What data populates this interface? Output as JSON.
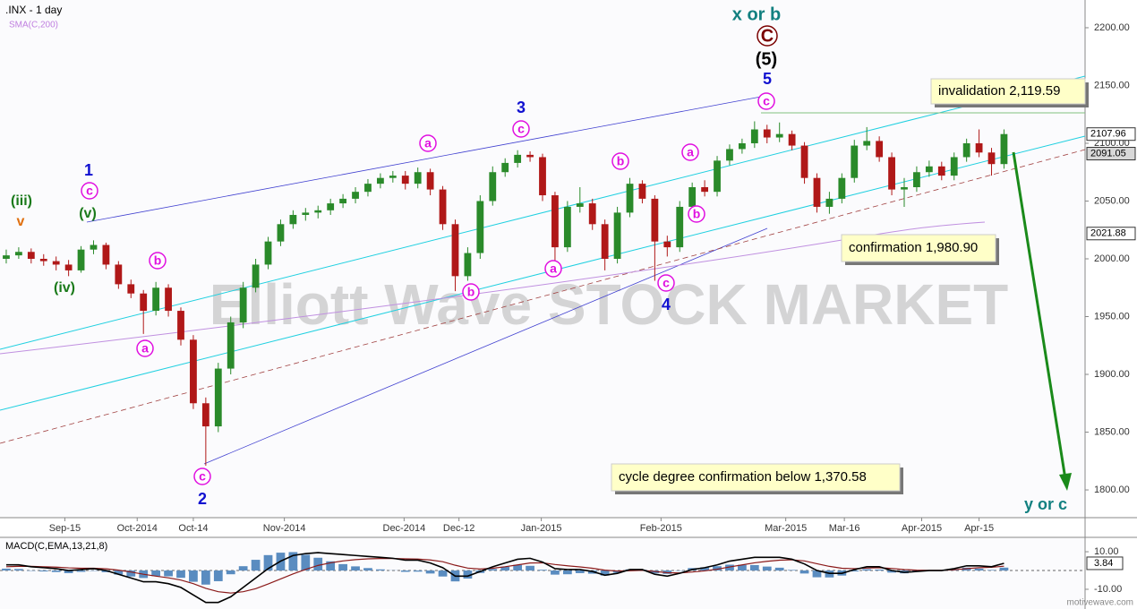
{
  "chart_data": [
    {
      "type": "candlestick",
      "title": ".INX - 1 day",
      "sma_label": "SMA(C,200)",
      "up_color": "#2a8a2a",
      "down_color": "#b01818",
      "xlim": [
        -0.5,
        86.5
      ],
      "ylim": [
        1776,
        2224
      ],
      "xticks": [
        {
          "value": 4.7,
          "label": "Sep-15"
        },
        {
          "value": 10.5,
          "label": "Oct-2014"
        },
        {
          "value": 15.0,
          "label": "Oct-14"
        },
        {
          "value": 22.3,
          "label": "Nov-2014"
        },
        {
          "value": 31.9,
          "label": "Dec-2014"
        },
        {
          "value": 36.3,
          "label": "Dec-12"
        },
        {
          "value": 42.9,
          "label": "Jan-2015"
        },
        {
          "value": 52.5,
          "label": "Feb-2015"
        },
        {
          "value": 62.5,
          "label": "Mar-2015"
        },
        {
          "value": 67.2,
          "label": "Mar-16"
        },
        {
          "value": 73.4,
          "label": "Apr-2015"
        },
        {
          "value": 78.0,
          "label": "Apr-15"
        }
      ],
      "yticks": [
        {
          "value": 1800,
          "label": "1800.00"
        },
        {
          "value": 1850,
          "label": "1850.00"
        },
        {
          "value": 1900,
          "label": "1900.00"
        },
        {
          "value": 1950,
          "label": "1950.00"
        },
        {
          "value": 2000,
          "label": "2000.00"
        },
        {
          "value": 2050,
          "label": "2050.00"
        },
        {
          "value": 2100,
          "label": "2100.00"
        },
        {
          "value": 2150,
          "label": "2150.00"
        },
        {
          "value": 2200,
          "label": "2200.00"
        }
      ],
      "axis_marks": [
        2091.05,
        2021.88
      ],
      "candles": [
        [
          2000,
          2008,
          1996,
          2003
        ],
        [
          2003,
          2010,
          2000,
          2006
        ],
        [
          2006,
          2009,
          1996,
          2000
        ],
        [
          2000,
          2004,
          1994,
          1998
        ],
        [
          1998,
          2002,
          1990,
          1995
        ],
        [
          1995,
          1999,
          1985,
          1990
        ],
        [
          1990,
          2011,
          1988,
          2008
        ],
        [
          2008,
          2016,
          2004,
          2012
        ],
        [
          2012,
          2014,
          1991,
          1995
        ],
        [
          1995,
          1998,
          1974,
          1978
        ],
        [
          1978,
          1982,
          1966,
          1970
        ],
        [
          1970,
          1973,
          1935,
          1955
        ],
        [
          1955,
          1980,
          1951,
          1975
        ],
        [
          1975,
          1978,
          1950,
          1955
        ],
        [
          1955,
          1958,
          1925,
          1930
        ],
        [
          1930,
          1934,
          1870,
          1875
        ],
        [
          1875,
          1880,
          1821,
          1855
        ],
        [
          1855,
          1910,
          1850,
          1905
        ],
        [
          1905,
          1950,
          1900,
          1945
        ],
        [
          1945,
          1980,
          1940,
          1975
        ],
        [
          1975,
          2000,
          1971,
          1995
        ],
        [
          1995,
          2019,
          1991,
          2015
        ],
        [
          2015,
          2034,
          2011,
          2030
        ],
        [
          2030,
          2042,
          2026,
          2038
        ],
        [
          2038,
          2044,
          2033,
          2040
        ],
        [
          2040,
          2046,
          2035,
          2042
        ],
        [
          2042,
          2052,
          2038,
          2048
        ],
        [
          2048,
          2056,
          2044,
          2052
        ],
        [
          2052,
          2062,
          2048,
          2058
        ],
        [
          2058,
          2069,
          2054,
          2065
        ],
        [
          2065,
          2074,
          2061,
          2070
        ],
        [
          2070,
          2076,
          2066,
          2072
        ],
        [
          2072,
          2076,
          2060,
          2065
        ],
        [
          2065,
          2079,
          2061,
          2075
        ],
        [
          2075,
          2078,
          2055,
          2060
        ],
        [
          2060,
          2063,
          2025,
          2030
        ],
        [
          2030,
          2034,
          1972,
          1985
        ],
        [
          1985,
          2010,
          1981,
          2005
        ],
        [
          2005,
          2055,
          2000,
          2050
        ],
        [
          2050,
          2080,
          2046,
          2075
        ],
        [
          2075,
          2087,
          2071,
          2083
        ],
        [
          2083,
          2094,
          2079,
          2090
        ],
        [
          2090,
          2093,
          2084,
          2088
        ],
        [
          2088,
          2091,
          2050,
          2055
        ],
        [
          2055,
          2058,
          1995,
          2010
        ],
        [
          2010,
          2050,
          2006,
          2045
        ],
        [
          2045,
          2062,
          2040,
          2048
        ],
        [
          2048,
          2052,
          2025,
          2030
        ],
        [
          2030,
          2034,
          1990,
          2000
        ],
        [
          2000,
          2045,
          1996,
          2040
        ],
        [
          2040,
          2070,
          2036,
          2065
        ],
        [
          2065,
          2068,
          2048,
          2052
        ],
        [
          2052,
          2055,
          1981,
          2015
        ],
        [
          2015,
          2020,
          2002,
          2010
        ],
        [
          2010,
          2050,
          2006,
          2045
        ],
        [
          2045,
          2066,
          2041,
          2062
        ],
        [
          2062,
          2068,
          2054,
          2058
        ],
        [
          2058,
          2089,
          2054,
          2085
        ],
        [
          2085,
          2099,
          2081,
          2095
        ],
        [
          2095,
          2104,
          2091,
          2100
        ],
        [
          2100,
          2119,
          2096,
          2112
        ],
        [
          2112,
          2116,
          2100,
          2105
        ],
        [
          2105,
          2118,
          2101,
          2108
        ],
        [
          2108,
          2111,
          2094,
          2098
        ],
        [
          2098,
          2101,
          2065,
          2070
        ],
        [
          2070,
          2074,
          2040,
          2045
        ],
        [
          2045,
          2058,
          2039,
          2052
        ],
        [
          2052,
          2074,
          2048,
          2070
        ],
        [
          2070,
          2103,
          2066,
          2098
        ],
        [
          2098,
          2114,
          2094,
          2102
        ],
        [
          2102,
          2106,
          2084,
          2088
        ],
        [
          2088,
          2092,
          2055,
          2060
        ],
        [
          2060,
          2070,
          2045,
          2062
        ],
        [
          2062,
          2080,
          2058,
          2075
        ],
        [
          2075,
          2085,
          2071,
          2080
        ],
        [
          2080,
          2084,
          2068,
          2072
        ],
        [
          2072,
          2092,
          2068,
          2088
        ],
        [
          2088,
          2104,
          2084,
          2100
        ],
        [
          2100,
          2112,
          2088,
          2092
        ],
        [
          2092,
          2096,
          2072,
          2082
        ],
        [
          2082,
          2112,
          2078,
          2107.96
        ]
      ],
      "annotations": [
        "x or b",
        "C",
        "(5)",
        "5",
        "c",
        "3",
        "c",
        "1",
        "c",
        "(v)",
        "(iii)",
        "v",
        "(iv)",
        "b",
        "a",
        "c",
        "2",
        "a",
        "b",
        "a",
        "b",
        "a",
        "b",
        "c",
        "4",
        "y or c"
      ],
      "notes": [
        "invalidation 2,119.59",
        "confirmation 1,980.90",
        "cycle degree confirmation below 1,370.58"
      ]
    },
    {
      "type": "macd",
      "title": "MACD(C,EMA,13,21,8)",
      "ylim": [
        -20.5,
        16.7
      ],
      "yticks": [
        {
          "value": 10,
          "label": "10.00"
        },
        {
          "value": -10,
          "label": "-10.00"
        }
      ],
      "histogram": {
        "color": "#5a8cc0",
        "values": [
          1,
          0.8,
          -0.2,
          -0.5,
          -0.8,
          -1.4,
          -0.7,
          -0.2,
          -0.9,
          -2.2,
          -3.2,
          -4,
          -3,
          -3.1,
          -3.9,
          -6,
          -7.5,
          -5.7,
          -2,
          2.3,
          5.7,
          8.2,
          9.5,
          9.8,
          8.4,
          6.8,
          4.9,
          3.4,
          2.2,
          1.3,
          0.6,
          0.1,
          -0.7,
          -0.6,
          -1.6,
          -3.2,
          -5.8,
          -4.3,
          -1.3,
          0.8,
          2,
          3,
          2.5,
          0.4,
          -2.2,
          -2,
          -1.4,
          -1.7,
          -2.7,
          -1.2,
          0.6,
          0.4,
          -1.5,
          -1.8,
          -0.2,
          1.3,
          1.7,
          2.3,
          3.1,
          3,
          2.9,
          2.1,
          1.5,
          0.3,
          -1.6,
          -3.6,
          -3.7,
          -2.7,
          -0.5,
          0.7,
          0.5,
          -1.1,
          -1.5,
          -0.7,
          -0.1,
          -0.1,
          0.6,
          1.5,
          1,
          0.3,
          1.54
        ]
      },
      "macd": {
        "color": "#000000",
        "values": [
          3,
          3,
          2,
          1.5,
          1,
          0,
          0.5,
          1,
          0,
          -2,
          -4,
          -6,
          -6,
          -7,
          -9,
          -13,
          -17,
          -17,
          -14,
          -9,
          -4,
          1,
          5,
          8,
          9,
          9.5,
          9,
          8.5,
          8,
          7.5,
          7,
          6.5,
          5.5,
          5.5,
          4,
          1.5,
          -3,
          -3,
          -0.5,
          2,
          4,
          6,
          6.5,
          4.5,
          1,
          0.5,
          0.5,
          -0.5,
          -2.5,
          -1.5,
          0.5,
          0.5,
          -2,
          -3,
          -1.5,
          0.5,
          1.5,
          3,
          5,
          6,
          7,
          7,
          7,
          6,
          3.5,
          0,
          -1.5,
          -1.5,
          0.5,
          2,
          2,
          0,
          -1,
          -0.5,
          0,
          0,
          1,
          2.5,
          2.5,
          2,
          3.84
        ]
      },
      "signal": {
        "color": "#8b1a1a",
        "values": [
          2,
          2.2,
          2.2,
          2,
          1.8,
          1.4,
          1.2,
          1.2,
          0.9,
          0.2,
          -0.8,
          -2,
          -3,
          -3.9,
          -5.1,
          -7,
          -9.5,
          -11.3,
          -12,
          -11.3,
          -9.7,
          -7.2,
          -4.5,
          -1.8,
          0.6,
          2.7,
          4.1,
          5.1,
          5.8,
          6.2,
          6.4,
          6.4,
          6.2,
          6.1,
          5.6,
          4.7,
          2.8,
          1.3,
          0.8,
          1.2,
          2,
          3,
          4,
          4.1,
          3.2,
          2.5,
          1.9,
          1.2,
          0.2,
          -0.3,
          -0.1,
          0.1,
          -0.5,
          -1.2,
          -1.3,
          -0.8,
          -0.2,
          0.7,
          1.9,
          3,
          4.1,
          4.9,
          5.5,
          5.7,
          5.1,
          3.6,
          2.2,
          1.2,
          1,
          1.3,
          1.5,
          1.1,
          0.5,
          0.2,
          0.1,
          0.1,
          0.4,
          1,
          1.5,
          1.7,
          2.3
        ]
      }
    }
  ],
  "watermark": "Elliott Wave STOCK MARKET",
  "footer": "motivewave.com"
}
